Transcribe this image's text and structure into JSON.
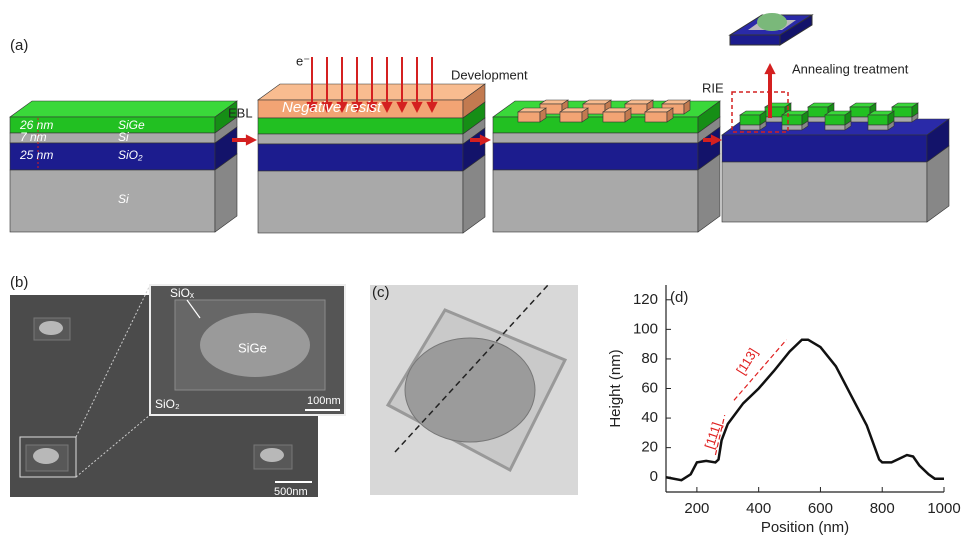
{
  "panel_a": {
    "label": "(a)",
    "layers": {
      "sige_thickness": "26 nm",
      "sige": "SiGe",
      "si_thickness": "7 nm",
      "si": "Si",
      "sio2_thickness": "25 nm",
      "sio2": "SiO₂",
      "substrate": "Si"
    },
    "electron": "e⁻",
    "resist": "Negative resist",
    "steps": [
      "EBL",
      "Development",
      "RIE",
      "Annealing treatment"
    ]
  },
  "panel_b": {
    "label": "(b)",
    "siox": "SiOₓ",
    "sige": "SiGe",
    "sio2": "SiO₂",
    "inset_scale": "100nm",
    "scale": "500nm"
  },
  "panel_c": {
    "label": "(c)"
  },
  "chart_data": {
    "type": "line",
    "panel_label": "(d)",
    "x_label": "Position (nm)",
    "y_label": "Height (nm)",
    "color": "#111111",
    "x": [
      100,
      150,
      180,
      200,
      230,
      260,
      270,
      280,
      300,
      350,
      400,
      450,
      500,
      540,
      560,
      600,
      650,
      700,
      750,
      790,
      800,
      830,
      860,
      880,
      900,
      920,
      950,
      970,
      1000
    ],
    "values": [
      0,
      -2,
      2,
      10,
      11,
      10,
      12,
      25,
      36,
      50,
      60,
      72,
      85,
      93,
      93,
      88,
      75,
      55,
      35,
      12,
      10,
      10,
      13,
      15,
      14,
      8,
      2,
      -1,
      -1
    ],
    "xlim": [
      100,
      1000
    ],
    "ylim": [
      -10,
      130
    ],
    "xticks": [
      200,
      400,
      600,
      800,
      1000
    ],
    "yticks": [
      0,
      20,
      40,
      60,
      80,
      100,
      120
    ],
    "annotations": [
      "[111]",
      "[113]"
    ],
    "annotation_color": "#e02020"
  }
}
